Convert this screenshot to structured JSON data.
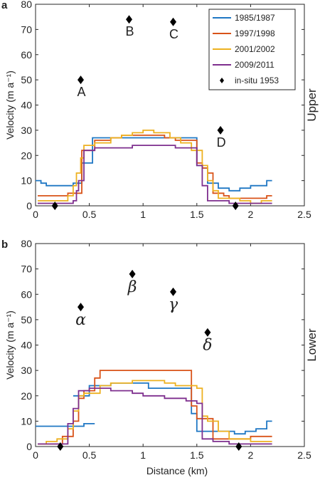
{
  "colors": {
    "1985/1987": "#1f77c4",
    "1997/1998": "#d95319",
    "2001/2002": "#edb120",
    "2009/2011": "#7e2f8e",
    "in-situ 1953": "#000000"
  },
  "chart_data": [
    {
      "type": "line",
      "panel": "a",
      "side_label": "Upper",
      "ylabel": "Velocity (m a⁻¹)",
      "xlabel": "",
      "xlim": [
        0,
        2.5
      ],
      "ylim": [
        0,
        80
      ],
      "xticks": [
        "0",
        "0.5",
        "1",
        "1.5",
        "2",
        "2.5"
      ],
      "yticks": [
        "0",
        "10",
        "20",
        "30",
        "40",
        "50",
        "60",
        "70",
        "80"
      ],
      "legend": {
        "placement": "top-right",
        "entries": [
          "1985/1987",
          "1997/1998",
          "2001/2002",
          "2009/2011",
          "in-situ 1953"
        ]
      },
      "series": [
        {
          "name": "1985/1987",
          "x": [
            0.0,
            0.05,
            0.1,
            0.2,
            0.3,
            0.35,
            0.4,
            0.43,
            0.5,
            0.53,
            0.6,
            0.7,
            0.8,
            0.9,
            1.0,
            1.1,
            1.2,
            1.3,
            1.4,
            1.45,
            1.5,
            1.55,
            1.6,
            1.65,
            1.7,
            1.75,
            1.8,
            1.85,
            1.9,
            1.95,
            2.0,
            2.05,
            2.1,
            2.15,
            2.2
          ],
          "y": [
            10,
            9,
            8,
            8,
            8,
            9,
            9,
            17,
            17,
            27,
            27,
            27,
            27,
            27,
            27,
            27,
            27,
            27,
            27,
            27,
            16,
            15,
            9,
            9,
            7,
            7,
            6,
            6,
            7,
            7,
            8,
            8,
            8,
            10,
            10
          ]
        },
        {
          "name": "1997/1998",
          "x": [
            0.02,
            0.05,
            0.1,
            0.15,
            0.2,
            0.25,
            0.3,
            0.35,
            0.4,
            0.43,
            0.5,
            0.55,
            0.6,
            0.7,
            0.75,
            0.8,
            0.85,
            0.9,
            1.0,
            1.1,
            1.2,
            1.25,
            1.3,
            1.4,
            1.45,
            1.5,
            1.55,
            1.6,
            1.65,
            1.7,
            1.75,
            1.8,
            1.85,
            1.9,
            1.95,
            2.0,
            2.05,
            2.1,
            2.15,
            2.2
          ],
          "y": [
            4,
            4,
            4,
            4,
            4,
            4,
            5,
            5,
            5,
            22,
            22,
            26,
            26,
            27,
            27,
            28,
            28,
            28,
            28,
            28,
            27,
            27,
            26,
            26,
            26,
            17,
            15,
            13,
            5,
            5,
            4,
            3,
            3,
            3,
            3,
            3,
            3,
            3,
            4,
            4
          ]
        },
        {
          "name": "2001/2002",
          "x": [
            0.02,
            0.1,
            0.2,
            0.25,
            0.3,
            0.35,
            0.38,
            0.42,
            0.45,
            0.5,
            0.55,
            0.6,
            0.7,
            0.75,
            0.8,
            0.85,
            0.9,
            1.0,
            1.05,
            1.1,
            1.2,
            1.25,
            1.3,
            1.35,
            1.4,
            1.45,
            1.5,
            1.55,
            1.6,
            1.65,
            1.7,
            1.75,
            1.8,
            1.85,
            1.9,
            1.95,
            2.0,
            2.05,
            2.1,
            2.15,
            2.2
          ],
          "y": [
            2,
            2,
            2,
            2,
            4,
            8,
            13,
            19,
            24,
            24,
            25,
            25,
            27,
            27,
            28,
            28,
            29,
            30,
            30,
            29,
            29,
            27,
            27,
            25,
            25,
            22,
            22,
            16,
            10,
            6,
            3,
            3,
            3,
            3,
            2,
            2,
            1,
            1,
            2,
            2,
            2
          ]
        },
        {
          "name": "2009/2011",
          "x": [
            0.02,
            0.1,
            0.2,
            0.3,
            0.35,
            0.38,
            0.4,
            0.45,
            0.5,
            0.55,
            0.6,
            0.7,
            0.8,
            0.9,
            1.0,
            1.1,
            1.2,
            1.3,
            1.4,
            1.45,
            1.5,
            1.55,
            1.6,
            1.65,
            1.7,
            1.75,
            1.8,
            1.85,
            1.9,
            1.95,
            2.0,
            2.1,
            2.2
          ],
          "y": [
            1,
            1,
            1,
            1,
            2,
            6,
            10,
            22,
            22,
            23,
            23,
            23,
            23,
            24,
            24,
            24,
            24,
            23,
            23,
            23,
            16,
            8,
            2,
            2,
            2,
            2,
            1,
            1,
            1,
            1,
            1,
            1,
            1
          ]
        }
      ],
      "insitu_1953": [
        {
          "label": "A",
          "x": 0.42,
          "y": 50
        },
        {
          "label": "B",
          "x": 0.87,
          "y": 74
        },
        {
          "label": "C",
          "x": 1.28,
          "y": 73
        },
        {
          "label": "D",
          "x": 1.72,
          "y": 30
        },
        {
          "label": "",
          "x": 0.18,
          "y": 0
        },
        {
          "label": "",
          "x": 1.86,
          "y": 0
        }
      ]
    },
    {
      "type": "line",
      "panel": "b",
      "side_label": "Lower",
      "ylabel": "Velocity (m a⁻¹)",
      "xlabel": "Distance (km)",
      "xlim": [
        0,
        2.5
      ],
      "ylim": [
        0,
        80
      ],
      "xticks": [
        "0",
        "0.5",
        "1",
        "1.5",
        "2",
        "2.5"
      ],
      "yticks": [
        "0",
        "10",
        "20",
        "30",
        "40",
        "50",
        "60",
        "70",
        "80"
      ],
      "series": [
        {
          "name": "1985/1987",
          "x": [
            0.0,
            0.1,
            0.2,
            0.3,
            0.35,
            0.4,
            0.45,
            0.5,
            0.55
          ],
          "y": [
            8,
            8,
            8,
            8,
            8,
            8,
            9,
            9,
            9
          ],
          "x2": [
            0.35,
            0.4,
            0.5,
            0.6,
            0.7,
            0.8,
            0.9,
            1.0,
            1.05,
            1.1,
            1.2,
            1.3,
            1.35,
            1.4,
            1.45,
            1.5,
            1.6,
            1.7,
            1.8,
            1.85,
            1.9,
            1.95,
            2.0,
            2.05,
            2.1,
            2.15,
            2.2
          ],
          "y2": [
            20,
            20,
            24,
            24,
            25,
            25,
            25,
            25,
            23,
            23,
            23,
            23,
            23,
            23,
            13,
            6,
            6,
            6,
            6,
            5,
            5,
            6,
            6,
            7,
            7,
            10,
            10
          ]
        },
        {
          "name": "1997/1998",
          "x": [
            0.02,
            0.1,
            0.2,
            0.25,
            0.3,
            0.35,
            0.4,
            0.45,
            0.5,
            0.55,
            0.6,
            0.7,
            0.8,
            0.9,
            1.0,
            1.1,
            1.2,
            1.3,
            1.35,
            1.4,
            1.45,
            1.5,
            1.6,
            1.65,
            1.7,
            1.75,
            1.8,
            1.9,
            2.0,
            2.1,
            2.2
          ],
          "y": [
            1,
            1,
            1,
            4,
            4,
            10,
            19,
            22,
            22,
            27,
            30,
            30,
            30,
            30,
            30,
            30,
            30,
            30,
            30,
            30,
            16,
            11,
            11,
            3,
            3,
            3,
            3,
            3,
            4,
            4,
            4
          ]
        },
        {
          "name": "2001/2002",
          "x": [
            0.02,
            0.1,
            0.2,
            0.25,
            0.3,
            0.35,
            0.4,
            0.45,
            0.5,
            0.6,
            0.7,
            0.8,
            0.9,
            1.0,
            1.1,
            1.2,
            1.3,
            1.4,
            1.45,
            1.5,
            1.55,
            1.6,
            1.7,
            1.8,
            1.9,
            2.0,
            2.1,
            2.2
          ],
          "y": [
            1,
            2,
            3,
            3,
            7,
            14,
            20,
            21,
            21,
            24,
            25,
            25,
            26,
            26,
            26,
            25,
            24,
            24,
            24,
            23,
            12,
            10,
            6,
            3,
            3,
            2,
            2,
            2
          ]
        },
        {
          "name": "2009/2011",
          "x": [
            0.02,
            0.1,
            0.2,
            0.25,
            0.3,
            0.35,
            0.4,
            0.45,
            0.5,
            0.6,
            0.7,
            0.8,
            0.9,
            1.0,
            1.1,
            1.2,
            1.3,
            1.4,
            1.45,
            1.5,
            1.55,
            1.6,
            1.65,
            1.7,
            1.8,
            1.9,
            2.0,
            2.1,
            2.2
          ],
          "y": [
            1,
            1,
            1,
            1,
            9,
            15,
            22,
            22,
            23,
            23,
            22,
            22,
            21,
            20,
            20,
            19,
            19,
            18,
            18,
            17,
            3,
            3,
            2,
            2,
            1,
            1,
            1,
            1,
            1
          ]
        }
      ],
      "insitu_1953": [
        {
          "label": "α",
          "x": 0.42,
          "y": 55
        },
        {
          "label": "β",
          "x": 0.9,
          "y": 68
        },
        {
          "label": "γ",
          "x": 1.28,
          "y": 61
        },
        {
          "label": "δ",
          "x": 1.6,
          "y": 45
        },
        {
          "label": "",
          "x": 0.23,
          "y": 0
        },
        {
          "label": "",
          "x": 1.89,
          "y": 0
        }
      ]
    }
  ]
}
